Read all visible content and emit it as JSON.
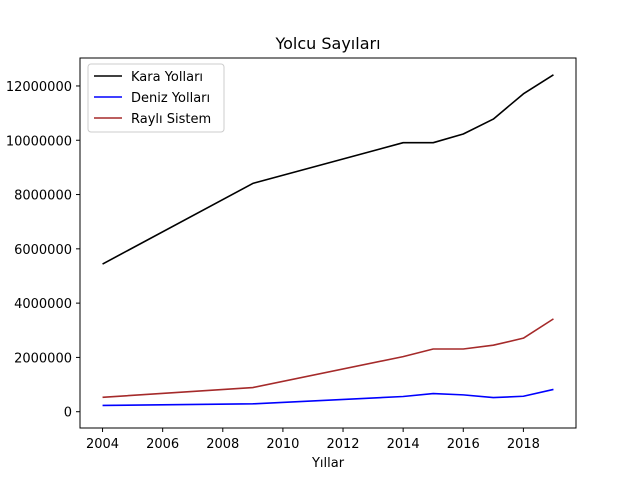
{
  "chart_data": {
    "type": "line",
    "title": "Yolcu Sayıları",
    "xlabel": "Yıllar",
    "ylabel": "",
    "xlim": [
      2003.25,
      2019.75
    ],
    "ylim": [
      -600000,
      13030000
    ],
    "x_ticks": [
      2004,
      2006,
      2008,
      2010,
      2012,
      2014,
      2016,
      2018
    ],
    "y_ticks": [
      0,
      2000000,
      4000000,
      6000000,
      8000000,
      10000000,
      12000000
    ],
    "x_tick_labels": [
      "2004",
      "2006",
      "2008",
      "2010",
      "2012",
      "2014",
      "2016",
      "2018"
    ],
    "y_tick_labels": [
      "0",
      "2000000",
      "4000000",
      "6000000",
      "8000000",
      "10000000",
      "12000000"
    ],
    "grid": false,
    "legend_position": "top-left",
    "x": [
      2004,
      2009,
      2014,
      2015,
      2016,
      2017,
      2018,
      2019
    ],
    "series": [
      {
        "name": "Kara Yolları",
        "color": "#000000",
        "values": [
          5440000,
          8410000,
          9910000,
          9910000,
          10230000,
          10780000,
          11710000,
          12410000
        ]
      },
      {
        "name": "Deniz Yolları",
        "color": "#0000ff",
        "values": [
          230000,
          290000,
          560000,
          670000,
          620000,
          520000,
          570000,
          820000
        ]
      },
      {
        "name": "Raylı Sistem",
        "color": "#a52a2a",
        "values": [
          530000,
          890000,
          2030000,
          2310000,
          2310000,
          2450000,
          2710000,
          3420000
        ]
      }
    ]
  }
}
